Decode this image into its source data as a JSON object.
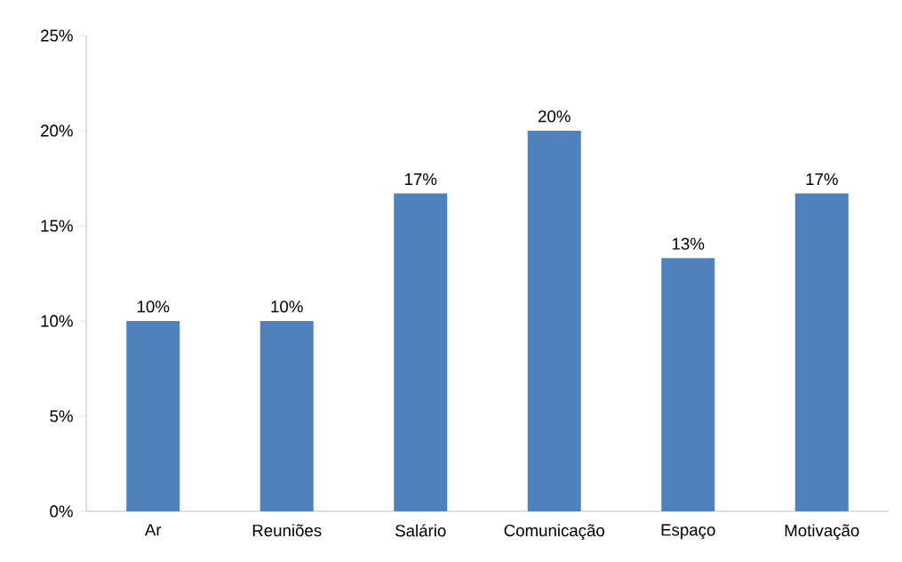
{
  "chart_data": {
    "type": "bar",
    "categories": [
      "Ar",
      "Reuniões",
      "Salário",
      "Comunicação",
      "Espaço",
      "Motivação"
    ],
    "values": [
      10,
      10,
      16.7,
      20,
      13.3,
      16.7
    ],
    "value_labels": [
      "10%",
      "10%",
      "17%",
      "20%",
      "13%",
      "17%"
    ],
    "color": "#4f81bd",
    "ylim": [
      0,
      25
    ],
    "yticks": [
      {
        "value": 0,
        "label": "0%"
      },
      {
        "value": 5,
        "label": "5%"
      },
      {
        "value": 10,
        "label": "10%"
      },
      {
        "value": 15,
        "label": "15%"
      },
      {
        "value": 20,
        "label": "20%"
      },
      {
        "value": 25,
        "label": "25%"
      }
    ],
    "grid": false
  }
}
